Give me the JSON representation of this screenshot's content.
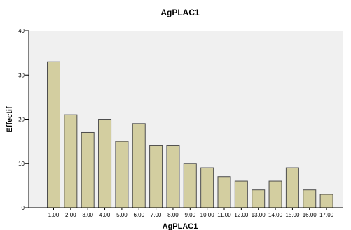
{
  "chart_data": {
    "type": "bar",
    "title": "AgPLAC1",
    "xlabel": "AgPLAC1",
    "ylabel": "Effectif",
    "categories": [
      "1,00",
      "2,00",
      "3,00",
      "4,00",
      "5,00",
      "6,00",
      "7,00",
      "8,00",
      "9,00",
      "10,00",
      "11,00",
      "12,00",
      "13,00",
      "14,00",
      "15,00",
      "16,00",
      "17,00"
    ],
    "values": [
      33,
      21,
      17,
      20,
      15,
      19,
      14,
      14,
      10,
      9,
      7,
      6,
      4,
      6,
      9,
      4,
      3
    ],
    "ylim": [
      0,
      40
    ],
    "yticks": [
      0,
      10,
      20,
      30,
      40
    ],
    "grid": false,
    "colors": {
      "plot_background": "#f0f0f0",
      "bar_fill": "#d3cea0",
      "bar_stroke": "#4d4d4d",
      "axis": "#000000"
    }
  }
}
